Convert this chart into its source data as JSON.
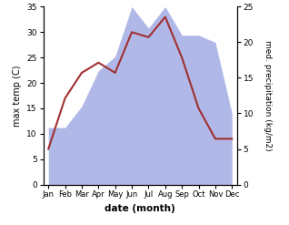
{
  "months": [
    "Jan",
    "Feb",
    "Mar",
    "Apr",
    "May",
    "Jun",
    "Jul",
    "Aug",
    "Sep",
    "Oct",
    "Nov",
    "Dec"
  ],
  "temperature": [
    7,
    17,
    22,
    24,
    22,
    30,
    29,
    33,
    25,
    15,
    9,
    9
  ],
  "precipitation": [
    8,
    8,
    11,
    16,
    18,
    25,
    22,
    25,
    21,
    21,
    20,
    10
  ],
  "temp_color": "#a03030",
  "precip_color_fill": "#b0b8e8",
  "temp_ylim": [
    0,
    35
  ],
  "precip_ylim": [
    0,
    25
  ],
  "temp_yticks": [
    0,
    5,
    10,
    15,
    20,
    25,
    30,
    35
  ],
  "precip_yticks": [
    0,
    5,
    10,
    15,
    20,
    25
  ],
  "xlabel": "date (month)",
  "ylabel_left": "max temp (C)",
  "ylabel_right": "med. precipitation (kg/m2)",
  "fig_width": 3.18,
  "fig_height": 2.47,
  "dpi": 100,
  "bg_color": "#ffffff"
}
